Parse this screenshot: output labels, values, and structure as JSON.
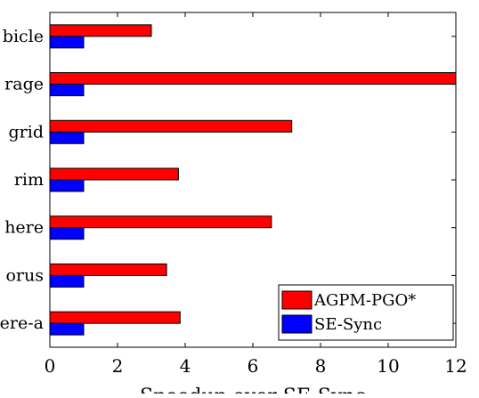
{
  "chart_data": {
    "type": "bar",
    "orientation": "horizontal",
    "categories": [
      "bicle",
      "rage",
      "grid",
      "rim",
      "here",
      "orus",
      "ere-a"
    ],
    "series": [
      {
        "name": "AGPM-PGO*",
        "color": "#ff0000",
        "values": [
          3.0,
          12.0,
          7.15,
          3.8,
          6.55,
          3.45,
          3.85
        ]
      },
      {
        "name": "SE-Sync",
        "color": "#0000ff",
        "values": [
          1.0,
          1.0,
          1.0,
          1.0,
          1.0,
          1.0,
          1.0
        ]
      }
    ],
    "xlim": [
      0,
      12
    ],
    "xticks": [
      "0",
      "2",
      "4",
      "6",
      "8",
      "10",
      "12"
    ],
    "xlabel": "Speedup over SE-Sync",
    "legend_position": "bottom-right",
    "grid": false
  }
}
